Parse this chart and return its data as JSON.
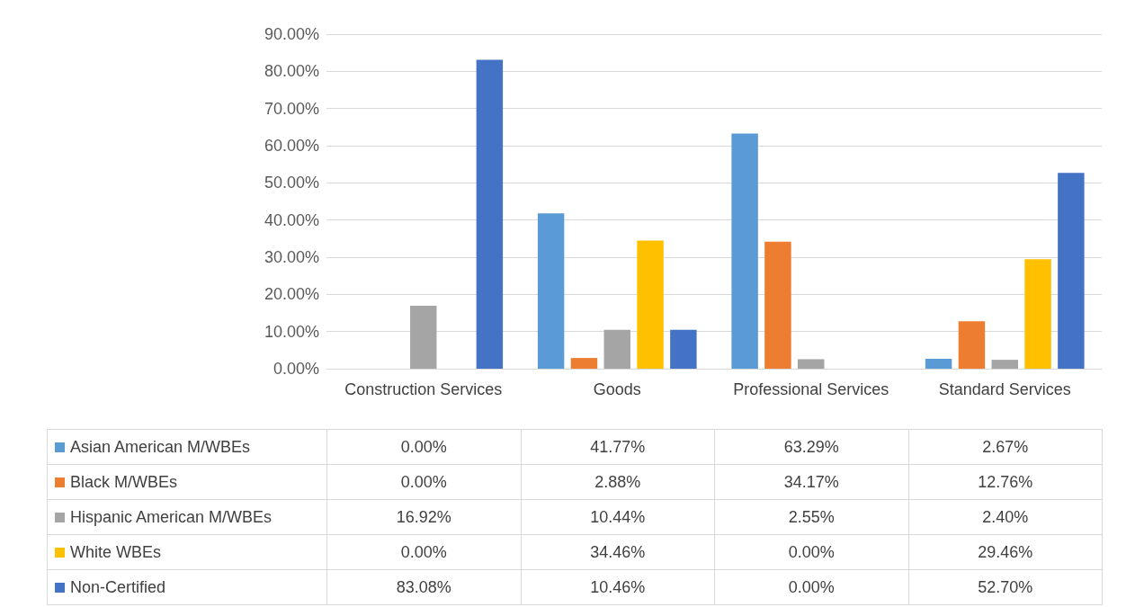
{
  "chart_data": {
    "type": "bar",
    "categories": [
      "Construction Services",
      "Goods",
      "Professional Services",
      "Standard Services"
    ],
    "series": [
      {
        "name": "Asian American M/WBEs",
        "color": "#5b9bd5",
        "values": [
          0,
          41.77,
          63.29,
          2.67
        ],
        "value_labels": [
          "0.00%",
          "41.77%",
          "63.29%",
          "2.67%"
        ]
      },
      {
        "name": "Black M/WBEs",
        "color": "#ed7d31",
        "values": [
          0,
          2.88,
          34.17,
          12.76
        ],
        "value_labels": [
          "0.00%",
          "2.88%",
          "34.17%",
          "12.76%"
        ]
      },
      {
        "name": "Hispanic American M/WBEs",
        "color": "#a5a5a5",
        "values": [
          16.92,
          10.44,
          2.55,
          2.4
        ],
        "value_labels": [
          "16.92%",
          "10.44%",
          "2.55%",
          "2.40%"
        ]
      },
      {
        "name": "White WBEs",
        "color": "#ffc000",
        "values": [
          0,
          34.46,
          0,
          29.46
        ],
        "value_labels": [
          "0.00%",
          "34.46%",
          "0.00%",
          "29.46%"
        ]
      },
      {
        "name": "Non-Certified",
        "color": "#4472c4",
        "values": [
          83.08,
          10.46,
          0,
          52.7
        ],
        "value_labels": [
          "83.08%",
          "10.46%",
          "0.00%",
          "52.70%"
        ]
      }
    ],
    "ylim": [
      0,
      90
    ],
    "yticks": [
      {
        "value": 0,
        "label": "0.00%"
      },
      {
        "value": 10,
        "label": "10.00%"
      },
      {
        "value": 20,
        "label": "20.00%"
      },
      {
        "value": 30,
        "label": "30.00%"
      },
      {
        "value": 40,
        "label": "40.00%"
      },
      {
        "value": 50,
        "label": "50.00%"
      },
      {
        "value": 60,
        "label": "60.00%"
      },
      {
        "value": 70,
        "label": "70.00%"
      },
      {
        "value": 80,
        "label": "80.00%"
      },
      {
        "value": 90,
        "label": "90.00%"
      }
    ],
    "grid": "y",
    "legend": "bottom"
  }
}
